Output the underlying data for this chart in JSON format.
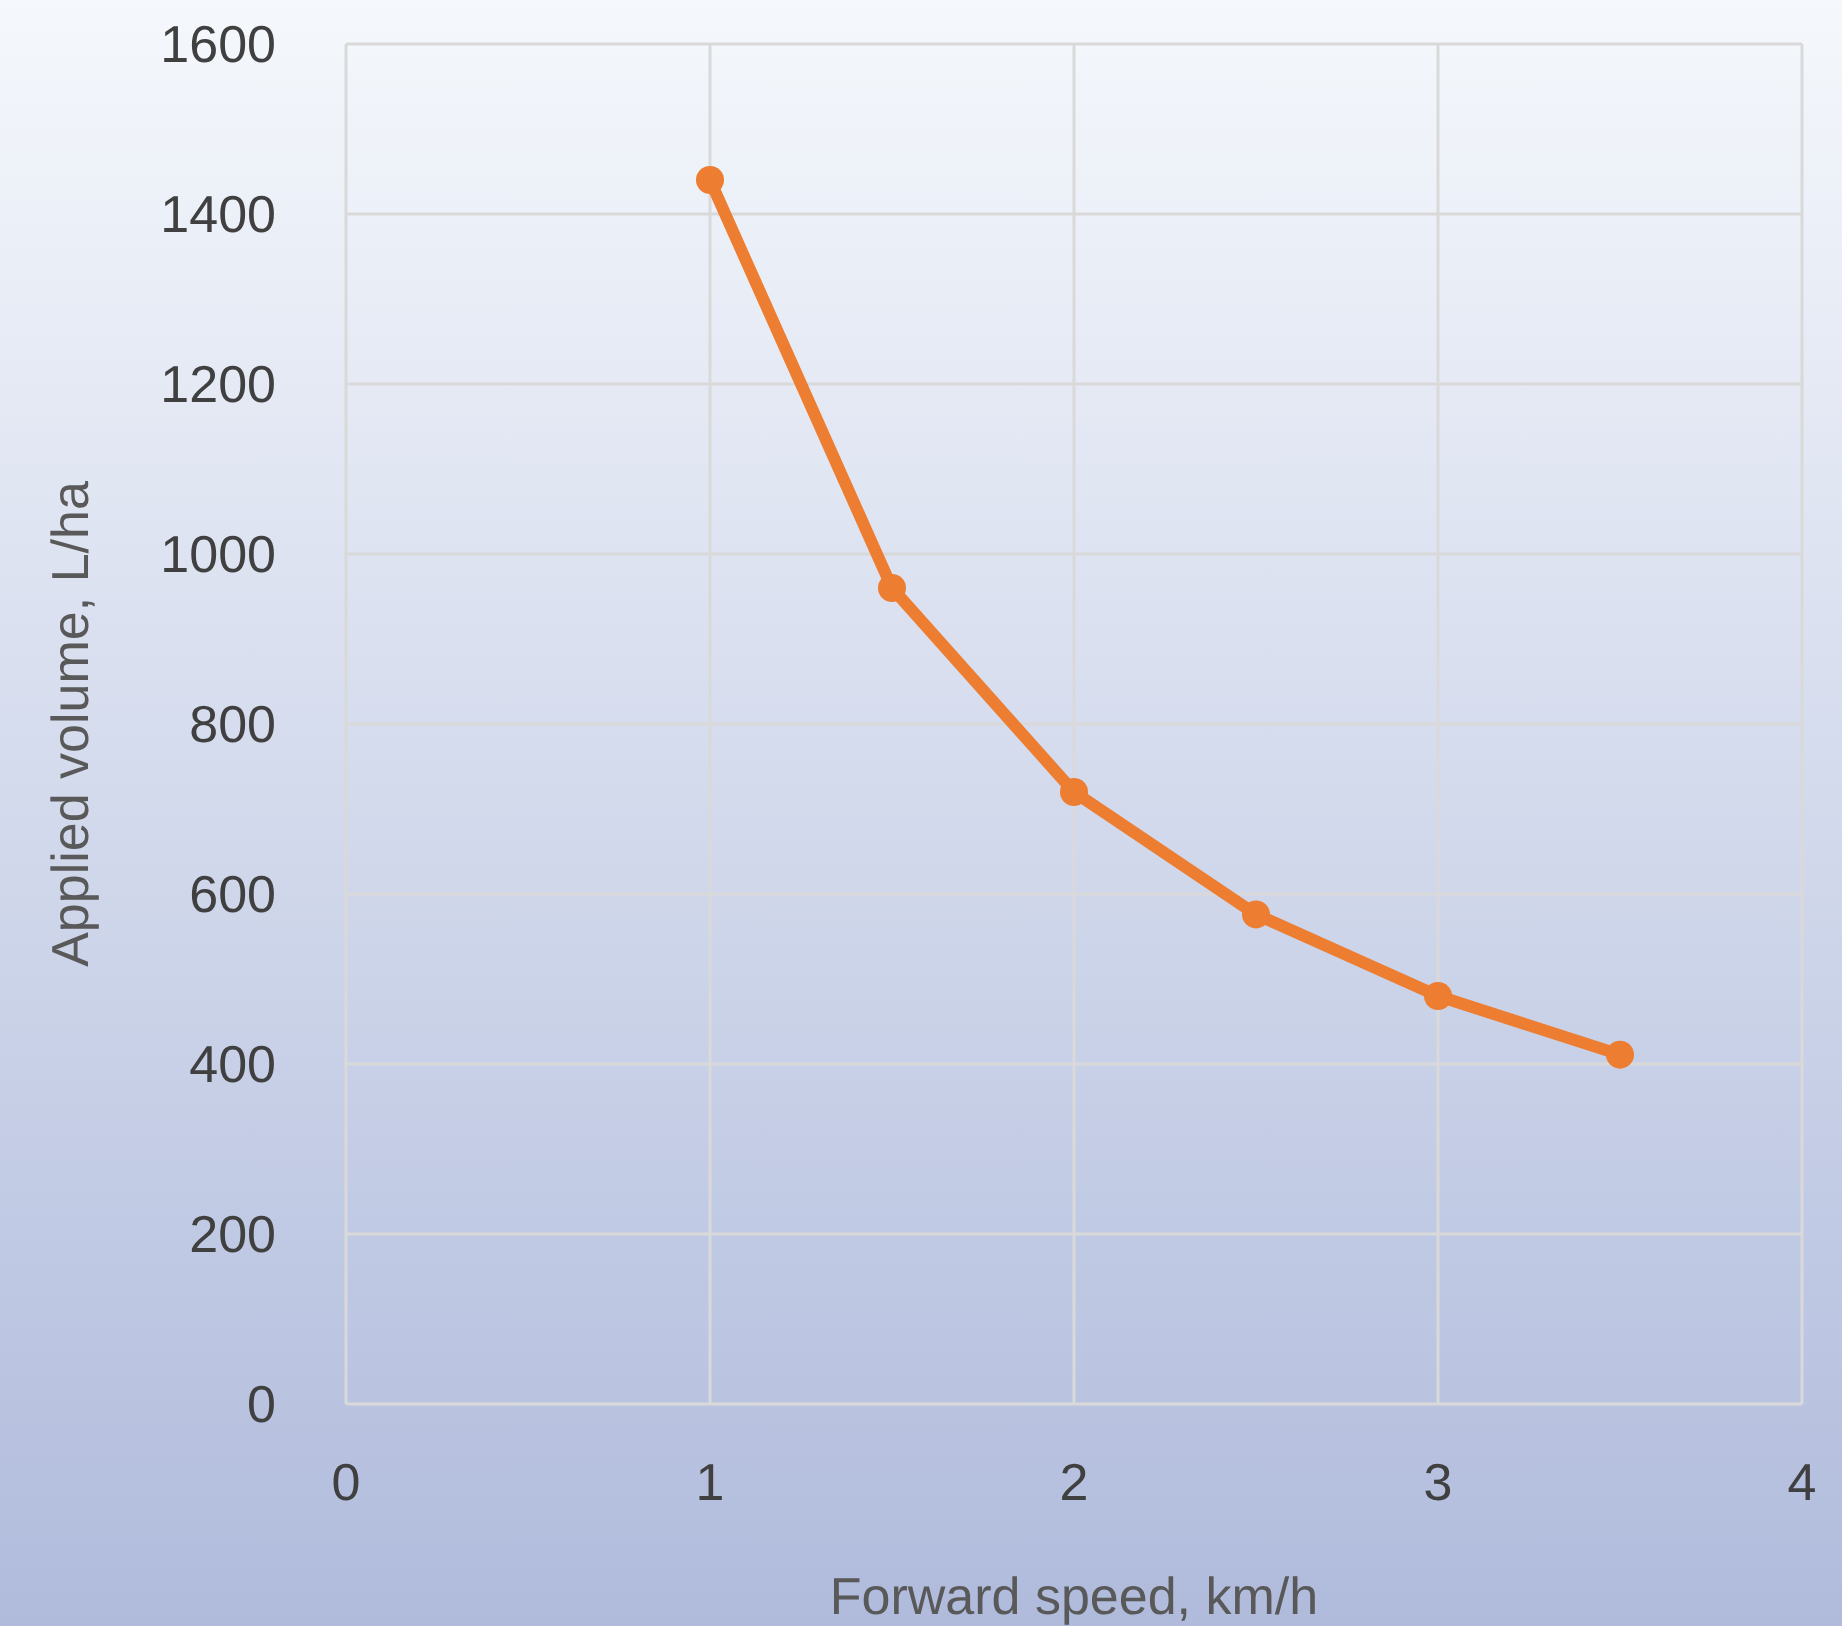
{
  "chart_data": {
    "type": "line",
    "xlabel": "Forward speed, km/h",
    "ylabel": "Applied volume, L/ha",
    "x": [
      1,
      1.5,
      2,
      2.5,
      3,
      3.5
    ],
    "series": [
      {
        "color": "#ed7d31",
        "values": [
          1440,
          960,
          720,
          576,
          480,
          411
        ]
      }
    ],
    "xlim": [
      0,
      4
    ],
    "xticks": [
      0,
      1,
      2,
      3,
      4
    ],
    "ylim": [
      0,
      1600
    ],
    "yticks": [
      0,
      200,
      400,
      600,
      800,
      1000,
      1200,
      1400,
      1600
    ],
    "grid": true,
    "marker": "circle",
    "line_style": "solid"
  }
}
